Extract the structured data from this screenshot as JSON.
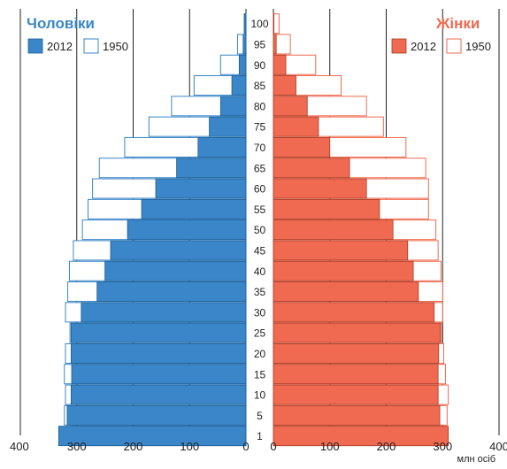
{
  "chart_data": {
    "type": "bar",
    "age_groups": [
      "1",
      "5",
      "10",
      "15",
      "20",
      "25",
      "30",
      "35",
      "40",
      "45",
      "50",
      "55",
      "60",
      "65",
      "70",
      "75",
      "80",
      "85",
      "90",
      "95",
      "100"
    ],
    "male": {
      "title": "Чоловіки",
      "color": "#3a86c8",
      "series": [
        {
          "name": "2012",
          "values": [
            332,
            317,
            310,
            309,
            310,
            310,
            292,
            264,
            250,
            240,
            210,
            185,
            160,
            123,
            85,
            65,
            45,
            25,
            12,
            5,
            3
          ]
        },
        {
          "name": "1950",
          "values": [
            310,
            322,
            320,
            322,
            320,
            312,
            320,
            316,
            313,
            306,
            290,
            280,
            272,
            260,
            215,
            172,
            132,
            92,
            45,
            15,
            3
          ]
        }
      ]
    },
    "female": {
      "title": "Жінки",
      "color": "#ef6a50",
      "series": [
        {
          "name": "2012",
          "values": [
            310,
            295,
            292,
            292,
            293,
            296,
            285,
            257,
            248,
            238,
            212,
            188,
            165,
            135,
            100,
            80,
            60,
            40,
            22,
            5,
            1
          ]
        },
        {
          "name": "1950",
          "values": [
            305,
            308,
            310,
            305,
            302,
            298,
            300,
            300,
            297,
            292,
            288,
            275,
            275,
            270,
            235,
            195,
            165,
            120,
            75,
            30,
            10
          ]
        }
      ]
    },
    "x_ticks": [
      "400",
      "300",
      "200",
      "100",
      "0",
      "0",
      "100",
      "200",
      "300",
      "400"
    ],
    "xlim": [
      0,
      400
    ],
    "unit": "млн осіб",
    "grid": true
  },
  "legend": {
    "male_2012": "2012",
    "male_1950": "1950",
    "female_2012": "2012",
    "female_1950": "1950"
  }
}
